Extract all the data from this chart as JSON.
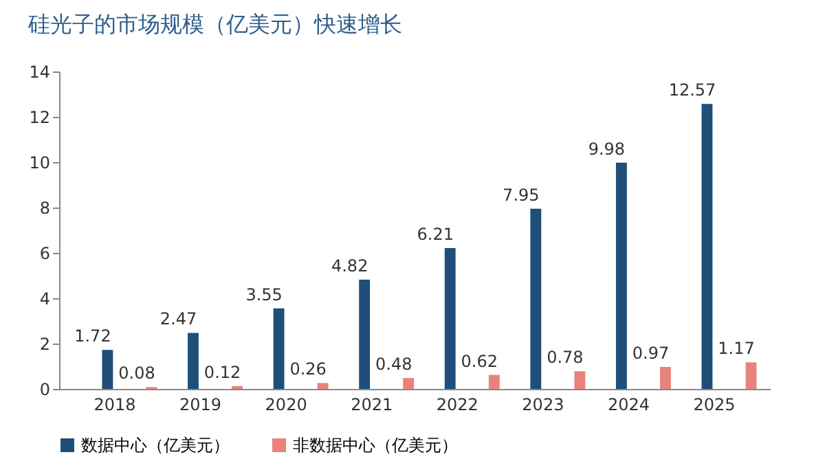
{
  "chart_data": {
    "type": "bar",
    "title": "硅光子的市场规模（亿美元）快速增长",
    "categories": [
      "2018",
      "2019",
      "2020",
      "2021",
      "2022",
      "2023",
      "2024",
      "2025"
    ],
    "series": [
      {
        "name": "数据中心（亿美元）",
        "color": "#1f4e79",
        "values": [
          1.72,
          2.47,
          3.55,
          4.82,
          6.21,
          7.95,
          9.98,
          12.57
        ]
      },
      {
        "name": "非数据中心（亿美元）",
        "color": "#e8827c",
        "values": [
          0.08,
          0.12,
          0.26,
          0.48,
          0.62,
          0.78,
          0.97,
          1.17
        ]
      }
    ],
    "ylim": [
      0,
      14
    ],
    "yticks": [
      0,
      2,
      4,
      6,
      8,
      10,
      12,
      14
    ],
    "grid": false,
    "legend": "bottom",
    "data_labels": true
  }
}
